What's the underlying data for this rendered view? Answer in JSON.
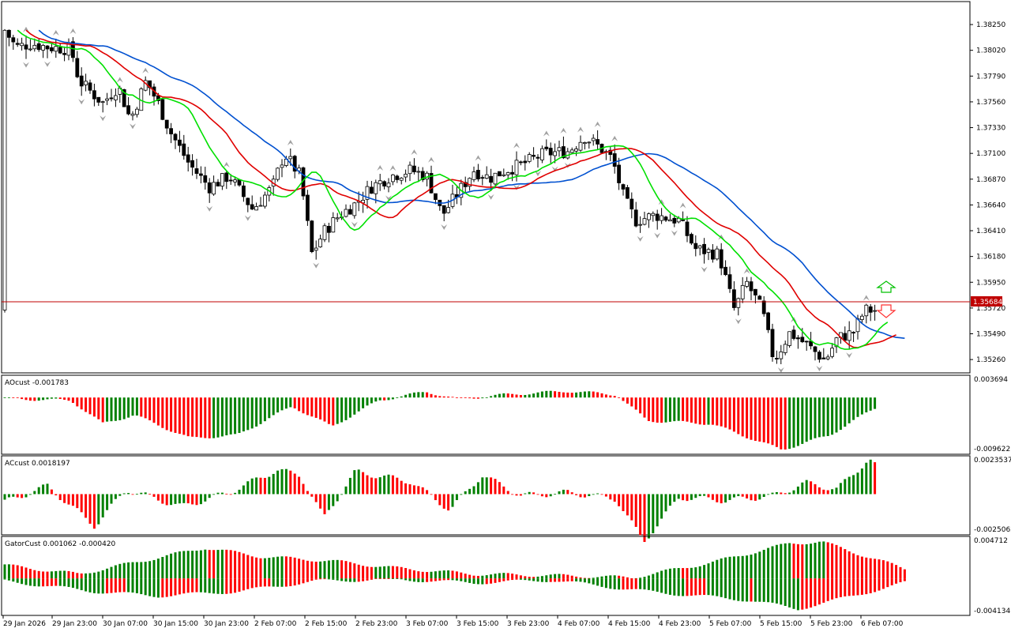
{
  "colors": {
    "background": "#ffffff",
    "frame": "#000000",
    "bull_candle": "#ffffff",
    "bear_candle": "#000000",
    "ma_fast": "#00e000",
    "ma_mid": "#e00000",
    "ma_slow": "#0050d0",
    "bid_line": "#c00000",
    "osc_up": "#008000",
    "osc_down": "#ff0000",
    "fractal": "#a0a0a0",
    "arrow_up": "#00c000",
    "arrow_down": "#ff3030"
  },
  "chart_data": [
    {
      "type": "candlestick",
      "panel": "main",
      "price_ticks": [
        "1.38250",
        "1.38020",
        "1.37790",
        "1.37560",
        "1.37330",
        "1.37100",
        "1.36870",
        "1.36640",
        "1.36410",
        "1.36180",
        "1.35950",
        "1.35720",
        "1.35490",
        "1.35260"
      ],
      "ylim": [
        1.35141,
        1.38455
      ],
      "current_price": "1.35684",
      "current_price_value": 1.35684,
      "ma_lines": [
        "fast (green)",
        "mid (red)",
        "slow (blue)"
      ],
      "signals": [
        "buy arrow",
        "sell arrow"
      ]
    },
    {
      "type": "histogram",
      "panel": "AOcust",
      "label": "AOcust -0.001783",
      "ymax_label": "0.003694",
      "ymin_label": "-0.009622",
      "ylim": [
        -0.009622,
        0.003694
      ]
    },
    {
      "type": "histogram",
      "panel": "ACcust",
      "label": "ACcust 0.0018197",
      "ymax_label": "0.0023537",
      "ymin_label": "-0.0025062",
      "ylim": [
        -0.0025062,
        0.0023537
      ]
    },
    {
      "type": "histogram",
      "panel": "GatorCust",
      "label": "GatorCust 0.001062 -0.000420",
      "ymax_label": "0.004712",
      "ymin_label": "-0.004134",
      "ylim": [
        -0.004134,
        0.004712
      ]
    }
  ],
  "time_axis": [
    "29 Jan 2026",
    "29 Jan 23:00",
    "30 Jan 07:00",
    "30 Jan 15:00",
    "30 Jan 23:00",
    "2 Feb 07:00",
    "2 Feb 15:00",
    "2 Feb 23:00",
    "3 Feb 07:00",
    "3 Feb 15:00",
    "3 Feb 23:00",
    "4 Feb 07:00",
    "4 Feb 15:00",
    "4 Feb 23:00",
    "5 Feb 07:00",
    "5 Feb 15:00",
    "5 Feb 23:00",
    "6 Feb 07:00"
  ]
}
